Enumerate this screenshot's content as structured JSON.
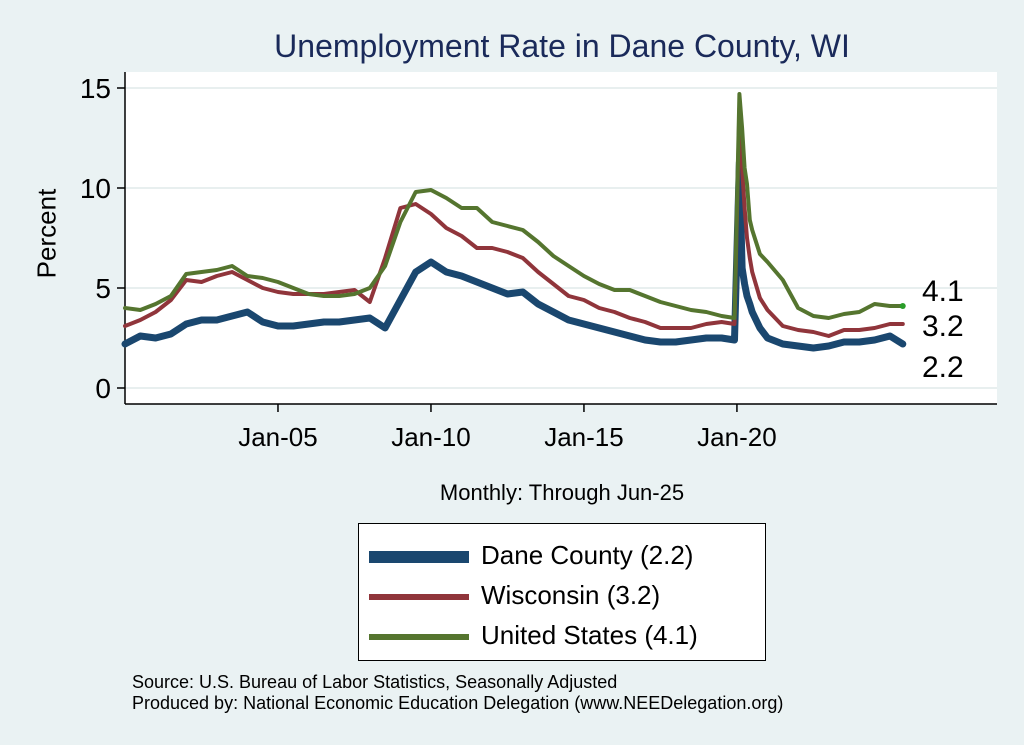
{
  "chart_data": {
    "type": "line",
    "title": "Unemployment Rate in Dane  County, WI",
    "xlabel": "Monthly: Through Jun-25",
    "ylabel": "Percent",
    "ylim": [
      -0.8,
      15.8
    ],
    "xlim": [
      2000.0,
      2028.5
    ],
    "yticks": [
      0,
      5,
      10,
      15
    ],
    "xticks": [
      {
        "x": 2005.0,
        "label": "Jan-05"
      },
      {
        "x": 2010.0,
        "label": "Jan-10"
      },
      {
        "x": 2015.0,
        "label": "Jan-15"
      },
      {
        "x": 2020.0,
        "label": "Jan-20"
      }
    ],
    "grid": true,
    "legend_position": "bottom-center",
    "end_labels": [
      "4.1",
      "3.2",
      "2.2"
    ],
    "series": [
      {
        "name": "Dane  County (2.2)",
        "color": "#1a476f",
        "x": [
          2000.0,
          2000.5,
          2001.0,
          2001.5,
          2002.0,
          2002.5,
          2003.0,
          2003.5,
          2004.0,
          2004.5,
          2005.0,
          2005.5,
          2006.0,
          2006.5,
          2007.0,
          2007.5,
          2008.0,
          2008.5,
          2009.0,
          2009.5,
          2010.0,
          2010.5,
          2011.0,
          2011.5,
          2012.0,
          2012.5,
          2013.0,
          2013.5,
          2014.0,
          2014.5,
          2015.0,
          2015.5,
          2016.0,
          2016.5,
          2017.0,
          2017.5,
          2018.0,
          2018.5,
          2019.0,
          2019.5,
          2019.92,
          2020.08,
          2020.17,
          2020.25,
          2020.33,
          2020.42,
          2020.5,
          2020.75,
          2021.0,
          2021.5,
          2022.0,
          2022.5,
          2023.0,
          2023.5,
          2024.0,
          2024.5,
          2025.0,
          2025.42
        ],
        "values": [
          2.2,
          2.6,
          2.5,
          2.7,
          3.2,
          3.4,
          3.4,
          3.6,
          3.8,
          3.3,
          3.1,
          3.1,
          3.2,
          3.3,
          3.3,
          3.4,
          3.5,
          3.0,
          4.4,
          5.8,
          6.3,
          5.8,
          5.6,
          5.3,
          5.0,
          4.7,
          4.8,
          4.2,
          3.8,
          3.4,
          3.2,
          3.0,
          2.8,
          2.6,
          2.4,
          2.3,
          2.3,
          2.4,
          2.5,
          2.5,
          2.4,
          11.3,
          6.0,
          5.2,
          4.6,
          4.2,
          3.8,
          3.0,
          2.5,
          2.2,
          2.1,
          2.0,
          2.1,
          2.3,
          2.3,
          2.4,
          2.6,
          2.2
        ]
      },
      {
        "name": "Wisconsin (3.2)",
        "color": "#90353b",
        "x": [
          2000.0,
          2000.5,
          2001.0,
          2001.5,
          2002.0,
          2002.5,
          2003.0,
          2003.5,
          2004.0,
          2004.5,
          2005.0,
          2005.5,
          2006.0,
          2006.5,
          2007.0,
          2007.5,
          2008.0,
          2008.5,
          2009.0,
          2009.5,
          2010.0,
          2010.5,
          2011.0,
          2011.5,
          2012.0,
          2012.5,
          2013.0,
          2013.5,
          2014.0,
          2014.5,
          2015.0,
          2015.5,
          2016.0,
          2016.5,
          2017.0,
          2017.5,
          2018.0,
          2018.5,
          2019.0,
          2019.5,
          2019.92,
          2020.08,
          2020.17,
          2020.25,
          2020.33,
          2020.42,
          2020.5,
          2020.75,
          2021.0,
          2021.5,
          2022.0,
          2022.5,
          2023.0,
          2023.5,
          2024.0,
          2024.5,
          2025.0,
          2025.42
        ],
        "values": [
          3.1,
          3.4,
          3.8,
          4.4,
          5.4,
          5.3,
          5.6,
          5.8,
          5.4,
          5.0,
          4.8,
          4.7,
          4.7,
          4.7,
          4.8,
          4.9,
          4.3,
          6.5,
          9.0,
          9.2,
          8.7,
          8.0,
          7.6,
          7.0,
          7.0,
          6.8,
          6.5,
          5.8,
          5.2,
          4.6,
          4.4,
          4.0,
          3.8,
          3.5,
          3.3,
          3.0,
          3.0,
          3.0,
          3.2,
          3.3,
          3.2,
          14.0,
          11.0,
          9.0,
          7.5,
          6.5,
          5.8,
          4.5,
          3.9,
          3.1,
          2.9,
          2.8,
          2.6,
          2.9,
          2.9,
          3.0,
          3.2,
          3.2
        ]
      },
      {
        "name": "United States (4.1)",
        "color": "#55752f",
        "x": [
          2000.0,
          2000.5,
          2001.0,
          2001.5,
          2002.0,
          2002.5,
          2003.0,
          2003.5,
          2004.0,
          2004.5,
          2005.0,
          2005.5,
          2006.0,
          2006.5,
          2007.0,
          2007.5,
          2008.0,
          2008.5,
          2009.0,
          2009.5,
          2010.0,
          2010.5,
          2011.0,
          2011.5,
          2012.0,
          2012.5,
          2013.0,
          2013.5,
          2014.0,
          2014.5,
          2015.0,
          2015.5,
          2016.0,
          2016.5,
          2017.0,
          2017.5,
          2018.0,
          2018.5,
          2019.0,
          2019.5,
          2019.92,
          2020.08,
          2020.17,
          2020.25,
          2020.33,
          2020.42,
          2020.5,
          2020.75,
          2021.0,
          2021.5,
          2022.0,
          2022.5,
          2023.0,
          2023.5,
          2024.0,
          2024.5,
          2025.0,
          2025.42
        ],
        "values": [
          4.0,
          3.9,
          4.2,
          4.6,
          5.7,
          5.8,
          5.9,
          6.1,
          5.6,
          5.5,
          5.3,
          5.0,
          4.7,
          4.6,
          4.6,
          4.7,
          5.0,
          6.1,
          8.3,
          9.8,
          9.9,
          9.5,
          9.0,
          9.0,
          8.3,
          8.1,
          7.9,
          7.3,
          6.6,
          6.1,
          5.6,
          5.2,
          4.9,
          4.9,
          4.6,
          4.3,
          4.1,
          3.9,
          3.8,
          3.6,
          3.5,
          14.7,
          13.0,
          11.0,
          10.2,
          8.4,
          7.9,
          6.7,
          6.3,
          5.4,
          4.0,
          3.6,
          3.5,
          3.7,
          3.8,
          4.2,
          4.1,
          4.1
        ]
      }
    ]
  },
  "source": {
    "line1": "Source: U.S. Bureau of Labor Statistics, Seasonally Adjusted",
    "line2": "Produced by: National Economic Education Delegation (www.NEEDelegation.org)"
  }
}
